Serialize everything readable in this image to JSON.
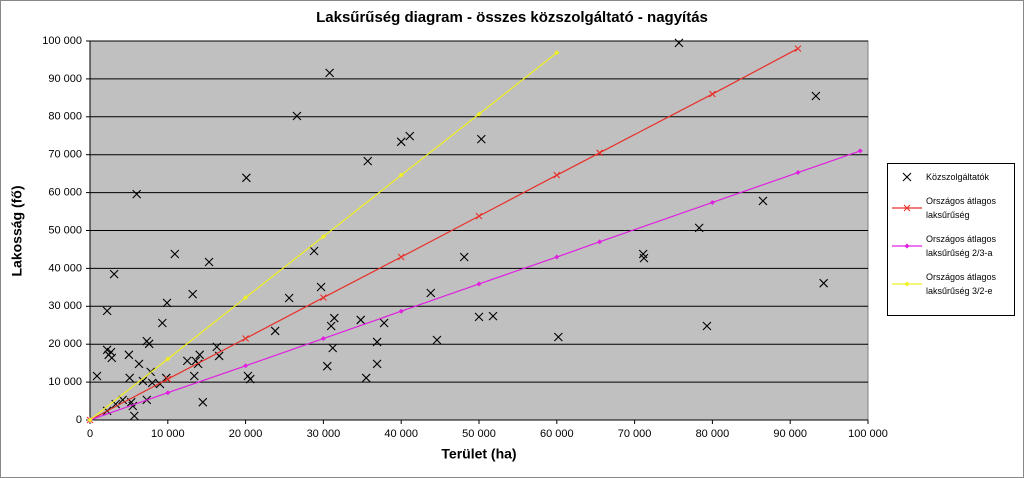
{
  "chart_data": {
    "type": "scatter",
    "title": "Laksűrűség diagram - összes közszolgáltató - nagyítás",
    "x_label": "Terület (ha)",
    "y_label": "Lakosság (fő)",
    "xlim": [
      0,
      100000
    ],
    "ylim": [
      0,
      100000
    ],
    "xticks": [
      {
        "value": 0,
        "label": "0"
      },
      {
        "value": 10000,
        "label": "10 000"
      },
      {
        "value": 20000,
        "label": "20 000"
      },
      {
        "value": 30000,
        "label": "30 000"
      },
      {
        "value": 40000,
        "label": "40 000"
      },
      {
        "value": 50000,
        "label": "50 000"
      },
      {
        "value": 60000,
        "label": "60 000"
      },
      {
        "value": 70000,
        "label": "70 000"
      },
      {
        "value": 80000,
        "label": "80 000"
      },
      {
        "value": 90000,
        "label": "90 000"
      },
      {
        "value": 100000,
        "label": "100 000"
      }
    ],
    "yticks": [
      {
        "value": 0,
        "label": "0"
      },
      {
        "value": 10000,
        "label": "10 000"
      },
      {
        "value": 20000,
        "label": "20 000"
      },
      {
        "value": 30000,
        "label": "30 000"
      },
      {
        "value": 40000,
        "label": "40 000"
      },
      {
        "value": 50000,
        "label": "50 000"
      },
      {
        "value": 60000,
        "label": "60 000"
      },
      {
        "value": 70000,
        "label": "70 000"
      },
      {
        "value": 80000,
        "label": "80 000"
      },
      {
        "value": 90000,
        "label": "90 000"
      },
      {
        "value": 100000,
        "label": "100 000"
      }
    ],
    "grid": true,
    "legend": "right",
    "plot_color": "#c0c0c0",
    "series": [
      {
        "name": "Közszolgáltatók",
        "color": "#000000",
        "marker": "x",
        "line": false,
        "x": [
          900,
          2200,
          2200,
          2400,
          2200,
          2700,
          2800,
          3100,
          3300,
          4200,
          5000,
          5100,
          5300,
          5500,
          5700,
          6000,
          6300,
          6800,
          7300,
          7600,
          7300,
          7800,
          8000,
          9000,
          9300,
          9800,
          9900,
          10900,
          12500,
          13200,
          13400,
          13600,
          13900,
          14100,
          14500,
          15300,
          16300,
          16600,
          20100,
          20300,
          20600,
          23800,
          25600,
          26600,
          28800,
          29700,
          30500,
          30800,
          31000,
          31200,
          31400,
          34800,
          35500,
          35700,
          36900,
          36900,
          37800,
          40000,
          41100,
          43800,
          44600,
          48100,
          50000,
          50300,
          51800,
          60200,
          71100,
          71200,
          75700,
          78300,
          79300,
          86500,
          93300,
          94300
        ],
        "values": [
          11600,
          2400,
          18500,
          17200,
          28800,
          17900,
          16400,
          38500,
          4200,
          5300,
          17200,
          11100,
          4700,
          3700,
          1100,
          59600,
          14800,
          10300,
          20800,
          20100,
          5300,
          12700,
          9800,
          9500,
          25600,
          11100,
          30900,
          43800,
          15600,
          33200,
          11600,
          15600,
          14800,
          17200,
          4700,
          41700,
          19300,
          16900,
          63900,
          11600,
          10800,
          23500,
          32200,
          80200,
          44600,
          35100,
          14200,
          91600,
          24800,
          19000,
          26900,
          26400,
          11100,
          68300,
          20600,
          14800,
          25600,
          73400,
          74900,
          33500,
          21100,
          43000,
          27200,
          74100,
          27400,
          21900,
          43800,
          42700,
          99500,
          50700,
          24800,
          57800,
          85500,
          36100
        ]
      },
      {
        "name": "Országos átlagos laksűrűség",
        "color": "#e8302a",
        "marker": "x",
        "line": true,
        "x": [
          0,
          10000,
          20000,
          30000,
          40000,
          50000,
          60000,
          65500,
          80000,
          91000
        ],
        "values": [
          0,
          10800,
          21500,
          32300,
          43000,
          53800,
          64600,
          70500,
          86000,
          98000
        ]
      },
      {
        "name": "Országos átlagos laksűrűség 2/3-a",
        "color": "#e020e0",
        "marker": "dot",
        "line": true,
        "x": [
          0,
          10000,
          20000,
          30000,
          40000,
          50000,
          60000,
          65500,
          80000,
          91000,
          99000
        ],
        "values": [
          0,
          7200,
          14300,
          21500,
          28700,
          35900,
          43000,
          47000,
          57400,
          65300,
          71000
        ]
      },
      {
        "name": "Országos átlagos laksűrűség 3/2-e",
        "color": "#f0f020",
        "marker": "dot",
        "line": true,
        "x": [
          0,
          10000,
          20000,
          30000,
          40000,
          50000,
          60000
        ],
        "values": [
          0,
          16100,
          32300,
          48400,
          64600,
          80700,
          96900
        ]
      }
    ]
  }
}
